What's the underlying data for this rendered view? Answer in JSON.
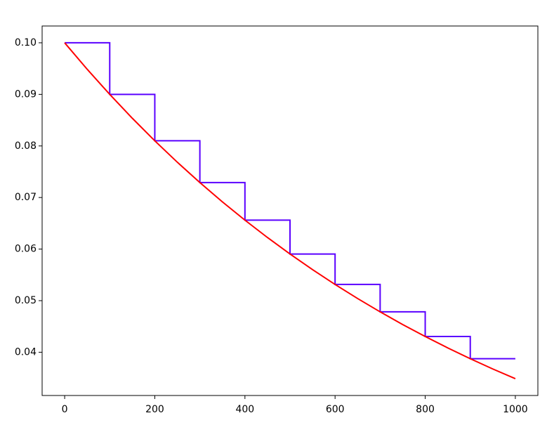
{
  "chart_data": {
    "type": "line",
    "series": [
      {
        "color": "#5a00ff",
        "x": [
          0,
          100,
          100,
          200,
          200,
          300,
          300,
          400,
          400,
          500,
          500,
          600,
          600,
          700,
          700,
          800,
          800,
          900,
          900,
          1000
        ],
        "values": [
          0.1,
          0.1,
          0.09,
          0.09,
          0.081,
          0.081,
          0.0729,
          0.0729,
          0.06561,
          0.06561,
          0.059049,
          0.059049,
          0.0531441,
          0.0531441,
          0.0478297,
          0.0478297,
          0.0430467,
          0.0430467,
          0.038742,
          0.038742
        ]
      },
      {
        "color": "#ff0000",
        "x": [
          0,
          50,
          100,
          150,
          200,
          250,
          300,
          350,
          400,
          450,
          500,
          550,
          600,
          650,
          700,
          750,
          800,
          850,
          900,
          950,
          1000
        ],
        "values": [
          0.1,
          0.0948683,
          0.09,
          0.0853815,
          0.081,
          0.0768433,
          0.0729,
          0.069159,
          0.06561,
          0.0622431,
          0.059049,
          0.0560188,
          0.0531441,
          0.0504169,
          0.0478297,
          0.0453752,
          0.0430467,
          0.0408377,
          0.038742,
          0.0367539,
          0.0348678
        ]
      }
    ],
    "xlim": [
      -50,
      1050
    ],
    "xticks": [
      0,
      200,
      400,
      600,
      800,
      1000
    ],
    "ylim": [
      0.03161,
      0.10326
    ],
    "yticks": [
      0.04,
      0.05,
      0.06,
      0.07,
      0.08,
      0.09,
      {
        "value": 0.1,
        "label": "0.10"
      }
    ]
  }
}
